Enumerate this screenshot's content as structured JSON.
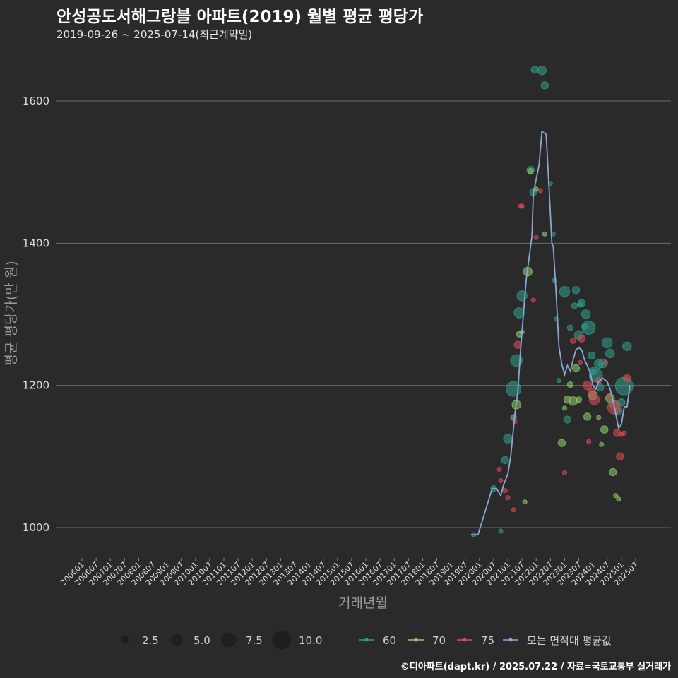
{
  "header": {
    "title": "안성공도서해그랑블 아파트(2019) 월별 평균 평당가",
    "subtitle": "2019-09-26 ~ 2025-07-14(최근계약일)"
  },
  "footer": {
    "credit": "©디아파트(dapt.kr) / 2025.07.22 / 자료=국토교통부 실거래가"
  },
  "chart_data": {
    "type": "scatter",
    "title": "안성공도서해그랑블 아파트(2019) 월별 평균 평당가",
    "xlabel": "거래년월",
    "ylabel": "평균 평당가(만 원)",
    "ylim": [
      960,
      1660
    ],
    "yticks": [
      1000,
      1200,
      1400,
      1600
    ],
    "xlim": [
      2006.0,
      2025.75
    ],
    "xticks": [
      "200601",
      "200607",
      "200701",
      "200707",
      "200801",
      "200807",
      "200901",
      "200907",
      "201001",
      "201007",
      "201101",
      "201107",
      "201201",
      "201207",
      "201301",
      "201307",
      "201401",
      "201407",
      "201501",
      "201507",
      "201601",
      "201607",
      "201701",
      "201707",
      "201801",
      "201807",
      "201901",
      "201907",
      "202001",
      "202007",
      "202101",
      "202107",
      "202201",
      "202207",
      "202301",
      "202307",
      "202401",
      "202407",
      "202501",
      "202507"
    ],
    "colors": {
      "60": "#2fa08e",
      "70": "#8cd06a",
      "75": "#e04a58",
      "all": "#8ca6d8"
    },
    "size_legend": [
      {
        "value": 2.5,
        "label": "2.5"
      },
      {
        "value": 5.0,
        "label": "5.0"
      },
      {
        "value": 7.5,
        "label": "7.5"
      },
      {
        "value": 10.0,
        "label": "10.0"
      }
    ],
    "color_legend": [
      {
        "key": "60",
        "label": "60"
      },
      {
        "key": "70",
        "label": "70"
      },
      {
        "key": "75",
        "label": "75"
      },
      {
        "key": "all",
        "label": "모든 면적대 평균값"
      }
    ],
    "series": [
      {
        "name": "60",
        "points": [
          [
            2019.8,
            990,
            1
          ],
          [
            2020.5,
            1055,
            2
          ],
          [
            2020.75,
            995,
            1
          ],
          [
            2020.9,
            1095,
            3
          ],
          [
            2021.0,
            1125,
            4
          ],
          [
            2021.2,
            1195,
            8
          ],
          [
            2021.3,
            1235,
            6
          ],
          [
            2021.4,
            1302,
            5
          ],
          [
            2021.5,
            1326,
            5
          ],
          [
            2021.8,
            1503,
            3
          ],
          [
            2021.9,
            1472,
            3
          ],
          [
            2021.95,
            1644,
            3
          ],
          [
            2022.2,
            1643,
            4
          ],
          [
            2022.3,
            1622,
            3
          ],
          [
            2022.5,
            1484,
            1
          ],
          [
            2022.6,
            1413,
            1
          ],
          [
            2022.65,
            1348,
            1
          ],
          [
            2022.7,
            1293,
            1
          ],
          [
            2022.8,
            1207,
            1
          ],
          [
            2023.0,
            1332,
            5
          ],
          [
            2023.1,
            1152,
            3
          ],
          [
            2023.2,
            1281,
            2
          ],
          [
            2023.35,
            1312,
            2
          ],
          [
            2023.4,
            1334,
            3
          ],
          [
            2023.5,
            1271,
            4
          ],
          [
            2023.55,
            1314,
            2
          ],
          [
            2023.6,
            1316,
            3
          ],
          [
            2023.7,
            1283,
            2
          ],
          [
            2023.75,
            1300,
            4
          ],
          [
            2023.85,
            1281,
            7
          ],
          [
            2023.95,
            1242,
            3
          ],
          [
            2024.0,
            1220,
            3
          ],
          [
            2024.1,
            1214,
            7
          ],
          [
            2024.2,
            1230,
            4
          ],
          [
            2024.25,
            1197,
            3
          ],
          [
            2024.35,
            1231,
            4
          ],
          [
            2024.5,
            1260,
            5
          ],
          [
            2024.6,
            1245,
            4
          ],
          [
            2024.75,
            1173,
            4
          ],
          [
            2024.9,
            1164,
            3
          ],
          [
            2025.0,
            1176,
            3
          ],
          [
            2025.1,
            1199,
            10
          ],
          [
            2025.2,
            1255,
            4
          ]
        ]
      },
      {
        "name": "70",
        "points": [
          [
            2021.2,
            1155,
            2
          ],
          [
            2021.3,
            1173,
            4
          ],
          [
            2021.4,
            1272,
            2
          ],
          [
            2021.5,
            1275,
            1
          ],
          [
            2021.6,
            1036,
            1
          ],
          [
            2021.7,
            1360,
            4
          ],
          [
            2021.8,
            1501,
            2
          ],
          [
            2022.0,
            1476,
            1
          ],
          [
            2022.3,
            1413,
            1
          ],
          [
            2022.9,
            1119,
            3
          ],
          [
            2023.0,
            1168,
            1
          ],
          [
            2023.1,
            1180,
            3
          ],
          [
            2023.2,
            1201,
            2
          ],
          [
            2023.3,
            1178,
            4
          ],
          [
            2023.4,
            1224,
            3
          ],
          [
            2023.5,
            1180,
            2
          ],
          [
            2023.8,
            1156,
            3
          ],
          [
            2024.0,
            1186,
            4
          ],
          [
            2024.2,
            1155,
            1
          ],
          [
            2024.3,
            1117,
            1
          ],
          [
            2024.4,
            1138,
            3
          ],
          [
            2024.6,
            1182,
            4
          ],
          [
            2024.7,
            1078,
            3
          ],
          [
            2024.8,
            1045,
            1
          ],
          [
            2024.9,
            1040,
            1
          ]
        ]
      },
      {
        "name": "75",
        "points": [
          [
            2020.7,
            1082,
            1
          ],
          [
            2020.75,
            1066,
            1
          ],
          [
            2020.9,
            1052,
            1
          ],
          [
            2021.0,
            1042,
            1
          ],
          [
            2021.2,
            1025,
            1
          ],
          [
            2021.25,
            1149,
            1
          ],
          [
            2021.35,
            1257,
            3
          ],
          [
            2021.45,
            1452,
            1
          ],
          [
            2021.5,
            1452,
            1
          ],
          [
            2021.9,
            1320,
            1
          ],
          [
            2022.0,
            1408,
            1
          ],
          [
            2022.15,
            1474,
            1
          ],
          [
            2023.0,
            1077,
            1
          ],
          [
            2023.3,
            1263,
            2
          ],
          [
            2023.55,
            1232,
            1
          ],
          [
            2023.6,
            1266,
            3
          ],
          [
            2023.8,
            1200,
            4
          ],
          [
            2023.85,
            1121,
            1
          ],
          [
            2023.95,
            1191,
            3
          ],
          [
            2024.05,
            1180,
            5
          ],
          [
            2024.2,
            1207,
            2
          ],
          [
            2024.45,
            1232,
            1
          ],
          [
            2024.55,
            1185,
            1
          ],
          [
            2024.75,
            1169,
            7
          ],
          [
            2024.85,
            1133,
            3
          ],
          [
            2024.95,
            1100,
            3
          ],
          [
            2025.0,
            1131,
            1
          ],
          [
            2025.1,
            1133,
            1
          ],
          [
            2025.2,
            1210,
            3
          ]
        ]
      }
    ],
    "average_line": [
      [
        2019.7,
        990
      ],
      [
        2019.95,
        990
      ],
      [
        2020.45,
        1055
      ],
      [
        2020.6,
        1055
      ],
      [
        2020.75,
        1045
      ],
      [
        2020.85,
        1060
      ],
      [
        2021.0,
        1075
      ],
      [
        2021.1,
        1100
      ],
      [
        2021.25,
        1160
      ],
      [
        2021.35,
        1190
      ],
      [
        2021.45,
        1250
      ],
      [
        2021.55,
        1300
      ],
      [
        2021.65,
        1350
      ],
      [
        2021.75,
        1380
      ],
      [
        2021.85,
        1410
      ],
      [
        2021.9,
        1470
      ],
      [
        2022.0,
        1490
      ],
      [
        2022.1,
        1510
      ],
      [
        2022.2,
        1557
      ],
      [
        2022.35,
        1553
      ],
      [
        2022.45,
        1480
      ],
      [
        2022.55,
        1400
      ],
      [
        2022.6,
        1395
      ],
      [
        2022.7,
        1330
      ],
      [
        2022.8,
        1255
      ],
      [
        2022.9,
        1230
      ],
      [
        2023.0,
        1215
      ],
      [
        2023.1,
        1228
      ],
      [
        2023.2,
        1220
      ],
      [
        2023.3,
        1236
      ],
      [
        2023.4,
        1250
      ],
      [
        2023.5,
        1253
      ],
      [
        2023.6,
        1250
      ],
      [
        2023.7,
        1236
      ],
      [
        2023.8,
        1228
      ],
      [
        2023.9,
        1218
      ],
      [
        2024.0,
        1200
      ],
      [
        2024.1,
        1195
      ],
      [
        2024.2,
        1205
      ],
      [
        2024.35,
        1210
      ],
      [
        2024.5,
        1205
      ],
      [
        2024.6,
        1195
      ],
      [
        2024.7,
        1180
      ],
      [
        2024.8,
        1160
      ],
      [
        2024.9,
        1140
      ],
      [
        2025.0,
        1145
      ],
      [
        2025.1,
        1170
      ],
      [
        2025.2,
        1170
      ],
      [
        2025.3,
        1200
      ]
    ]
  }
}
